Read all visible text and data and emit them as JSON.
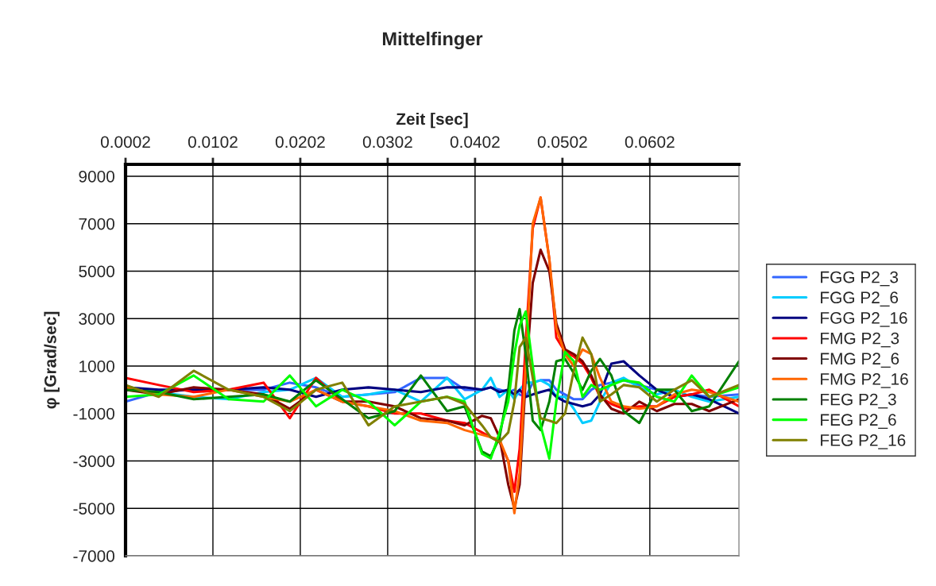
{
  "chart_data": {
    "type": "line",
    "title": "Mittelfinger",
    "xlabel": "Zeit [sec]",
    "ylabel": "φ [Grad/sec]",
    "x": [
      0.0002,
      0.004,
      0.008,
      0.012,
      0.016,
      0.019,
      0.022,
      0.025,
      0.028,
      0.031,
      0.034,
      0.037,
      0.039,
      0.041,
      0.042,
      0.043,
      0.044,
      0.0447,
      0.0453,
      0.046,
      0.0468,
      0.0477,
      0.0487,
      0.0495,
      0.0505,
      0.0515,
      0.0525,
      0.0535,
      0.0545,
      0.0558,
      0.0572,
      0.059,
      0.061,
      0.063,
      0.065,
      0.067,
      0.0704
    ],
    "series": [
      {
        "name": "FGG P2_3",
        "color": "#3366ff",
        "values": [
          -500,
          -100,
          0,
          0,
          0,
          300,
          100,
          -300,
          -200,
          -100,
          500,
          500,
          0,
          0,
          100,
          0,
          -100,
          0,
          -200,
          -300,
          300,
          400,
          400,
          0,
          -200,
          -400,
          -400,
          0,
          200,
          300,
          400,
          200,
          0,
          -300,
          -200,
          -300,
          -200
        ]
      },
      {
        "name": "FGG P2_6",
        "color": "#00ccff",
        "values": [
          0,
          -100,
          -300,
          -400,
          -100,
          0,
          500,
          -300,
          -200,
          0,
          -500,
          500,
          -400,
          0,
          500,
          -300,
          0,
          -400,
          0,
          300,
          300,
          400,
          200,
          -300,
          -300,
          -800,
          -1400,
          -1300,
          -500,
          300,
          500,
          100,
          -200,
          0,
          -300,
          -500,
          -300
        ]
      },
      {
        "name": "FGG P2_16",
        "color": "#000080",
        "values": [
          100,
          0,
          0,
          0,
          100,
          0,
          -300,
          0,
          100,
          0,
          -100,
          100,
          100,
          0,
          100,
          -100,
          0,
          -200,
          0,
          -300,
          -200,
          -100,
          0,
          -300,
          -500,
          -600,
          -700,
          -600,
          -200,
          1100,
          1200,
          600,
          0,
          -300,
          -200,
          -400,
          -1000
        ]
      },
      {
        "name": "FMG P2_3",
        "color": "#ff0000",
        "values": [
          500,
          200,
          -100,
          0,
          300,
          -1200,
          500,
          -500,
          -700,
          -1000,
          -1000,
          -1300,
          -1400,
          -1800,
          -2000,
          -2200,
          -3000,
          -4300,
          -2500,
          2000,
          6800,
          8100,
          5500,
          2200,
          1600,
          1400,
          1100,
          500,
          -300,
          -600,
          -800,
          -700,
          -700,
          -300,
          -200,
          0,
          -700
        ]
      },
      {
        "name": "FMG P2_6",
        "color": "#800000",
        "values": [
          0,
          -200,
          100,
          0,
          -200,
          -800,
          0,
          -500,
          -500,
          -700,
          -1200,
          -1300,
          -1500,
          -1100,
          -1200,
          -2000,
          -4000,
          -5000,
          -4000,
          500,
          4500,
          5900,
          5000,
          2800,
          1700,
          1500,
          1200,
          600,
          -200,
          -800,
          -1000,
          -500,
          -900,
          -600,
          -600,
          -900,
          -400
        ]
      },
      {
        "name": "FMG P2_16",
        "color": "#ff6600",
        "values": [
          100,
          -200,
          -300,
          0,
          -300,
          -500,
          0,
          -500,
          -700,
          -900,
          -1300,
          -1400,
          -1700,
          -1900,
          -2000,
          -2100,
          -3000,
          -5200,
          -3500,
          1000,
          7000,
          8100,
          5500,
          2600,
          1500,
          1000,
          1700,
          1500,
          500,
          -500,
          -700,
          -800,
          -700,
          -200,
          0,
          -100,
          -500
        ]
      },
      {
        "name": "FEG P2_3",
        "color": "#008000",
        "values": [
          0,
          -100,
          -400,
          -300,
          -200,
          -500,
          400,
          -400,
          -1200,
          -900,
          600,
          -900,
          -700,
          -2600,
          -2800,
          -2000,
          0,
          2500,
          3400,
          1500,
          -1300,
          -1700,
          -500,
          1200,
          1300,
          700,
          0,
          800,
          1300,
          600,
          -900,
          -1400,
          0,
          0,
          -900,
          -700,
          1200
        ]
      },
      {
        "name": "FEG P2_6",
        "color": "#00ff00",
        "values": [
          -300,
          -200,
          600,
          -400,
          -500,
          600,
          -700,
          0,
          -500,
          -1500,
          -500,
          -300,
          -500,
          -2700,
          -2900,
          -1800,
          -500,
          1500,
          2700,
          3300,
          1000,
          -1500,
          -2900,
          -500,
          1600,
          1200,
          -300,
          200,
          0,
          200,
          400,
          300,
          -300,
          -500,
          600,
          -300,
          100
        ]
      },
      {
        "name": "FEG P2_16",
        "color": "#808000",
        "values": [
          200,
          -300,
          800,
          0,
          -300,
          -900,
          0,
          300,
          -1500,
          -700,
          -500,
          -300,
          -600,
          -1500,
          -2000,
          -2200,
          -1800,
          -500,
          1800,
          2200,
          500,
          -1200,
          -1300,
          -1400,
          -1000,
          800,
          2200,
          1500,
          -500,
          -200,
          200,
          100,
          -500,
          0,
          400,
          -300,
          200
        ]
      }
    ],
    "xlim": [
      0.0002,
      0.0704
    ],
    "xticks": [
      0.0002,
      0.0102,
      0.0202,
      0.0302,
      0.0402,
      0.0502,
      0.0602
    ],
    "ylim": [
      -7000,
      9500
    ],
    "yticks": [
      9000,
      7000,
      5000,
      3000,
      1000,
      -1000,
      -3000,
      -5000,
      -7000
    ],
    "grid": true,
    "legend": "right",
    "line_style": "solid",
    "marker": "none"
  }
}
